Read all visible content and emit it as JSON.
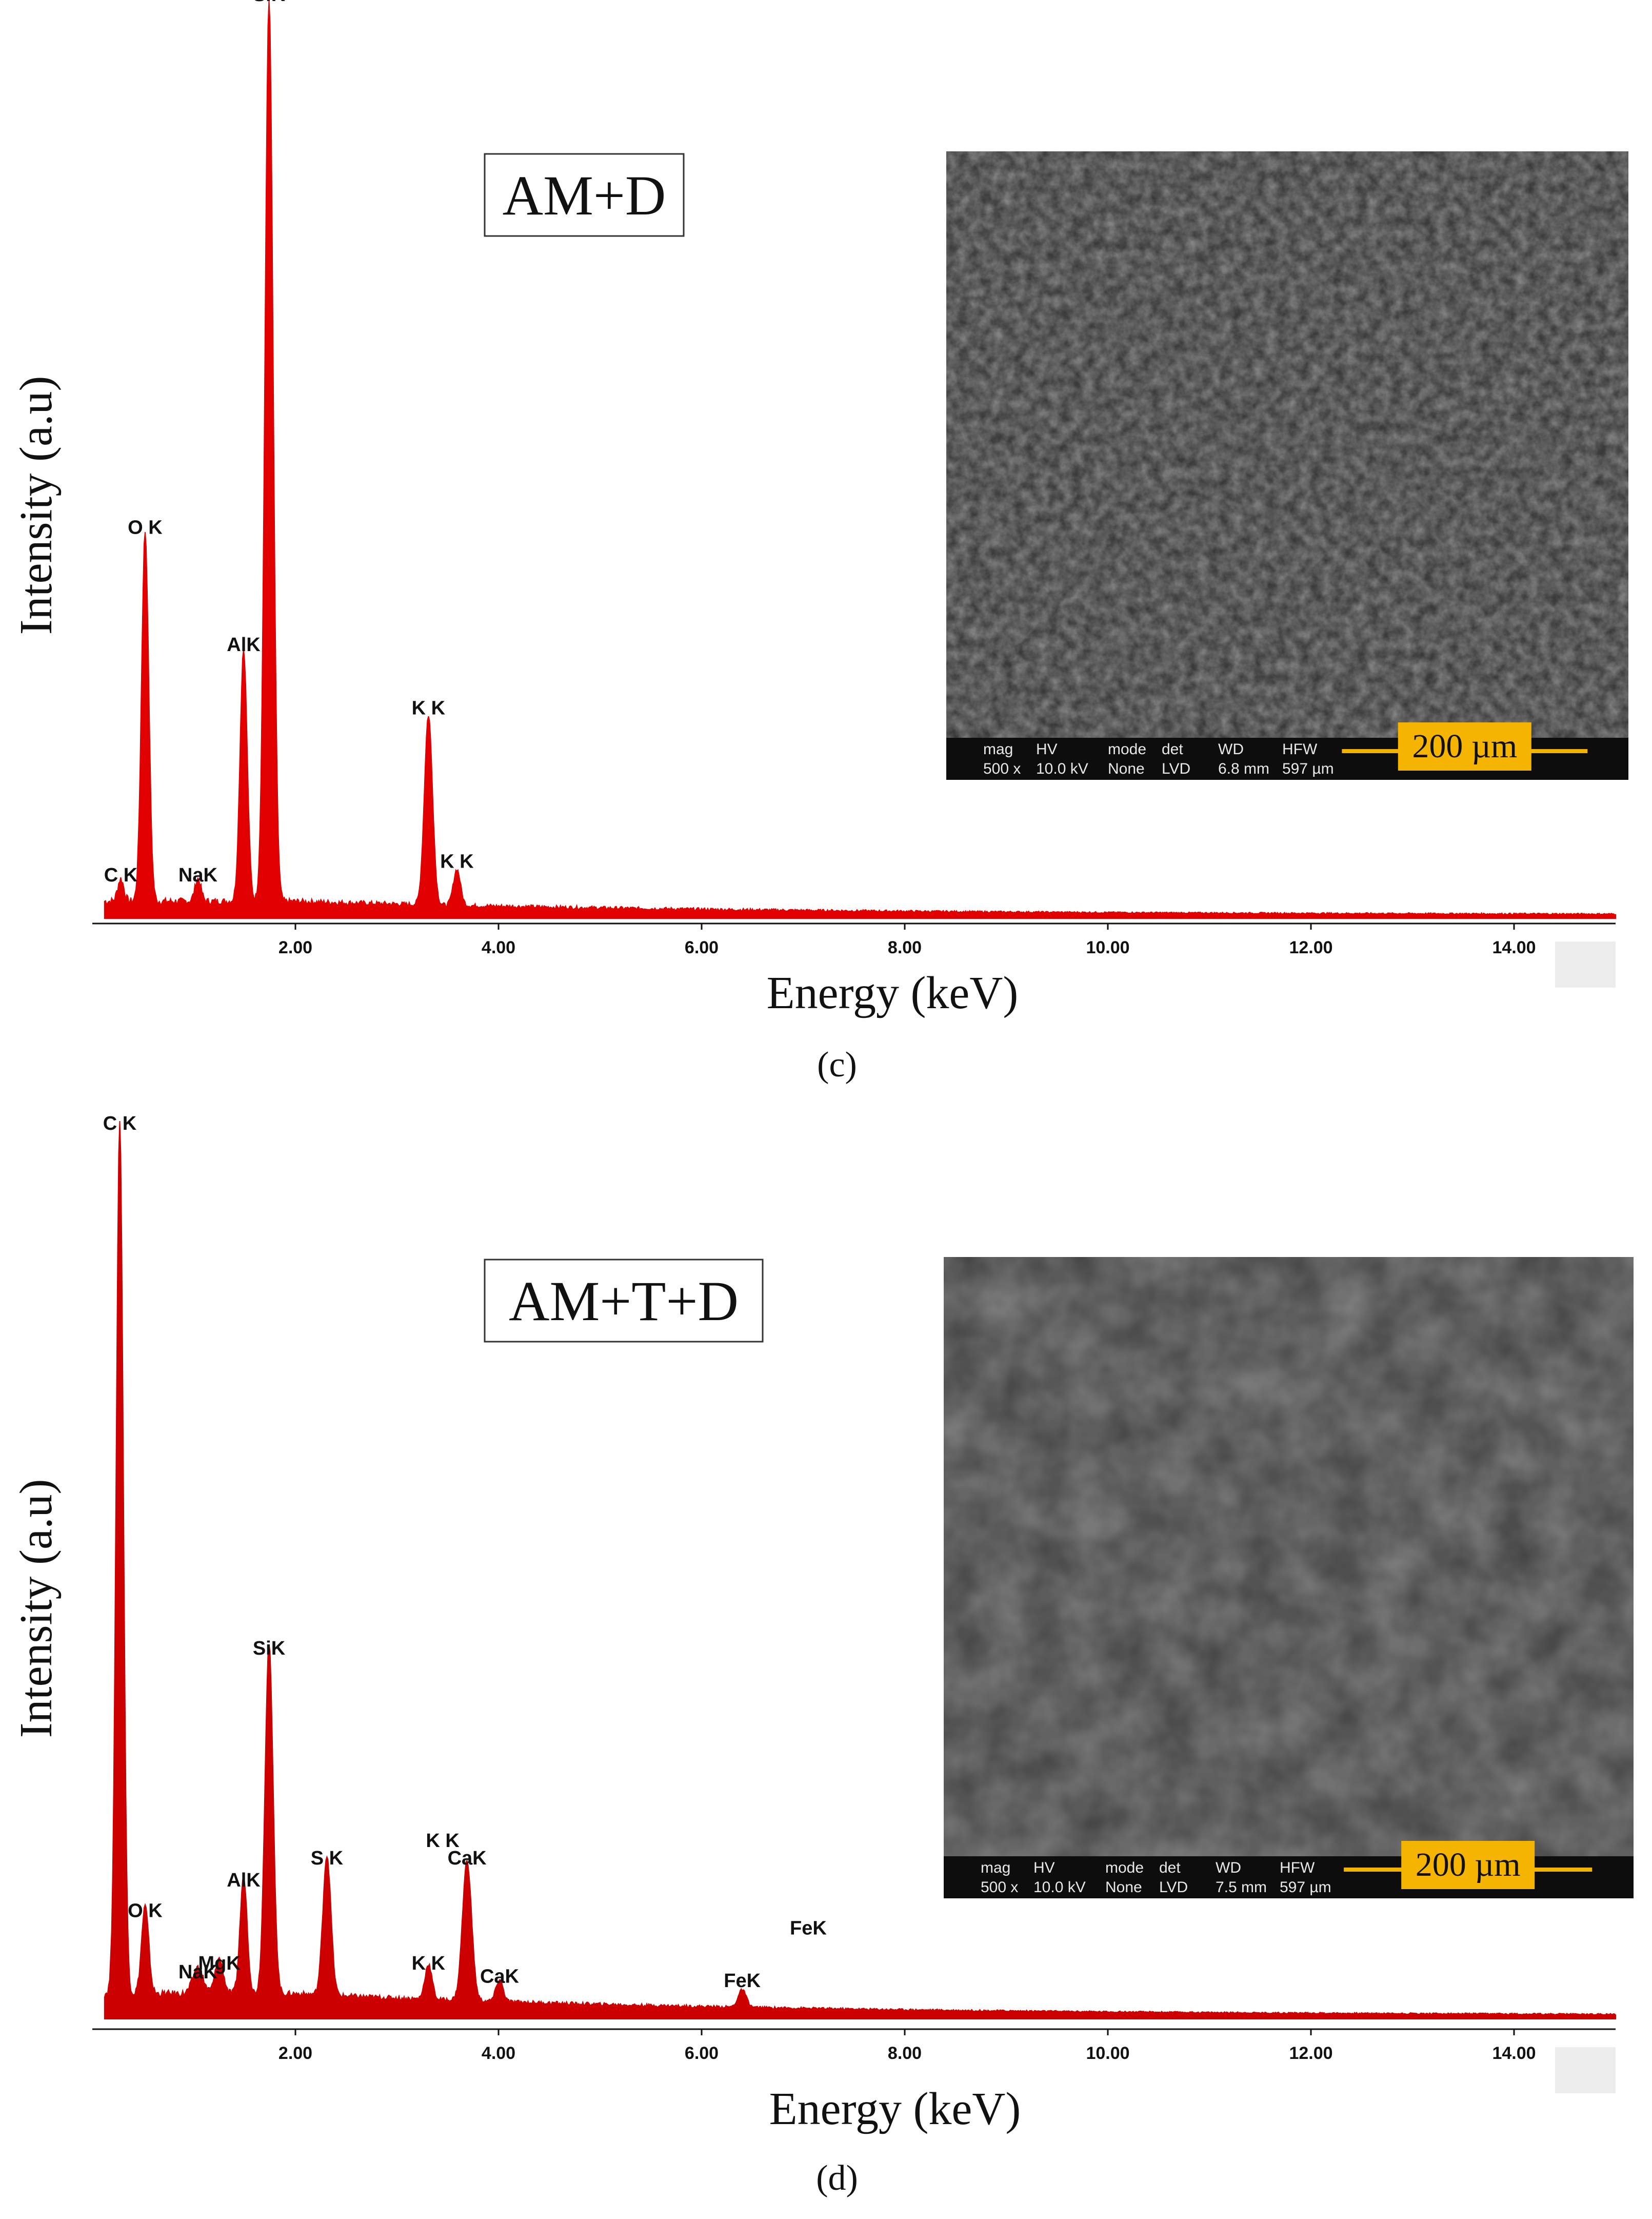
{
  "chart_data": [
    {
      "type": "line",
      "panel": "c",
      "sample_label": "AM+D",
      "xlabel": "Energy (keV)",
      "ylabel": "Intensity (a.u)",
      "xlim": [
        0,
        15
      ],
      "ylim": [
        0,
        100
      ],
      "x_ticks": [
        "2.00",
        "4.00",
        "6.00",
        "8.00",
        "10.00",
        "12.00",
        "14.00"
      ],
      "series_color": "#e00000",
      "baseline": 1.5,
      "peaks": [
        {
          "energy": 0.28,
          "height": 2.5,
          "width": 0.03,
          "label": "C K"
        },
        {
          "energy": 0.52,
          "height": 41,
          "width": 0.035,
          "label": "O K"
        },
        {
          "energy": 1.04,
          "height": 2.5,
          "width": 0.03,
          "label": "NaK"
        },
        {
          "energy": 1.49,
          "height": 28,
          "width": 0.035,
          "label": "AlK"
        },
        {
          "energy": 1.74,
          "height": 100,
          "width": 0.04,
          "label": "SiK"
        },
        {
          "energy": 3.31,
          "height": 21,
          "width": 0.04,
          "label": "K K"
        },
        {
          "energy": 3.59,
          "height": 4,
          "width": 0.035,
          "label": "K K"
        }
      ],
      "sem_inset": {
        "scale_bar": "200 µm",
        "info_header": [
          "mag",
          "HV",
          "mode",
          "det",
          "WD",
          "HFW"
        ],
        "info_values": [
          "500 x",
          "10.0 kV",
          "None",
          "LVD",
          "6.8 mm",
          "597 µm"
        ],
        "tone": "#3a3a3a"
      }
    },
    {
      "type": "line",
      "panel": "d",
      "sample_label": "AM+T+D",
      "xlabel": "Energy (keV)",
      "ylabel": "Intensity (a.u)",
      "xlim": [
        0,
        15
      ],
      "ylim": [
        0,
        100
      ],
      "x_ticks": [
        "2.00",
        "4.00",
        "6.00",
        "8.00",
        "10.00",
        "12.00",
        "14.00"
      ],
      "series_color": "#cc0000",
      "baseline": 2.5,
      "peaks": [
        {
          "energy": 0.27,
          "height": 100,
          "width": 0.035,
          "label": "C K"
        },
        {
          "energy": 0.52,
          "height": 10,
          "width": 0.035,
          "label": "O K"
        },
        {
          "energy": 1.04,
          "height": 3,
          "width": 0.05,
          "label": "NaK"
        },
        {
          "energy": 1.25,
          "height": 4,
          "width": 0.04,
          "label": "MgK"
        },
        {
          "energy": 1.49,
          "height": 13.5,
          "width": 0.035,
          "label": "AlK"
        },
        {
          "energy": 1.74,
          "height": 40,
          "width": 0.04,
          "label": "SiK"
        },
        {
          "energy": 2.31,
          "height": 16,
          "width": 0.04,
          "label": "S K"
        },
        {
          "energy": 3.31,
          "height": 4,
          "width": 0.035,
          "label": "K K"
        },
        {
          "energy": 3.69,
          "height": 16,
          "width": 0.045,
          "label": "CaK"
        },
        {
          "energy": 4.01,
          "height": 2.5,
          "width": 0.035,
          "label": "CaK"
        },
        {
          "energy": 6.4,
          "height": 2,
          "width": 0.04,
          "label": "FeK"
        }
      ],
      "extra_labels": [
        {
          "energy": 3.45,
          "label": "K K"
        },
        {
          "energy": 7.05,
          "label": "FeK"
        }
      ],
      "sem_inset": {
        "scale_bar": "200 µm",
        "info_header": [
          "mag",
          "HV",
          "mode",
          "det",
          "WD",
          "HFW"
        ],
        "info_values": [
          "500 x",
          "10.0 kV",
          "None",
          "LVD",
          "7.5 mm",
          "597 µm"
        ],
        "tone": "#454545"
      }
    }
  ],
  "captions": {
    "c": "(c)",
    "d": "(d)"
  }
}
